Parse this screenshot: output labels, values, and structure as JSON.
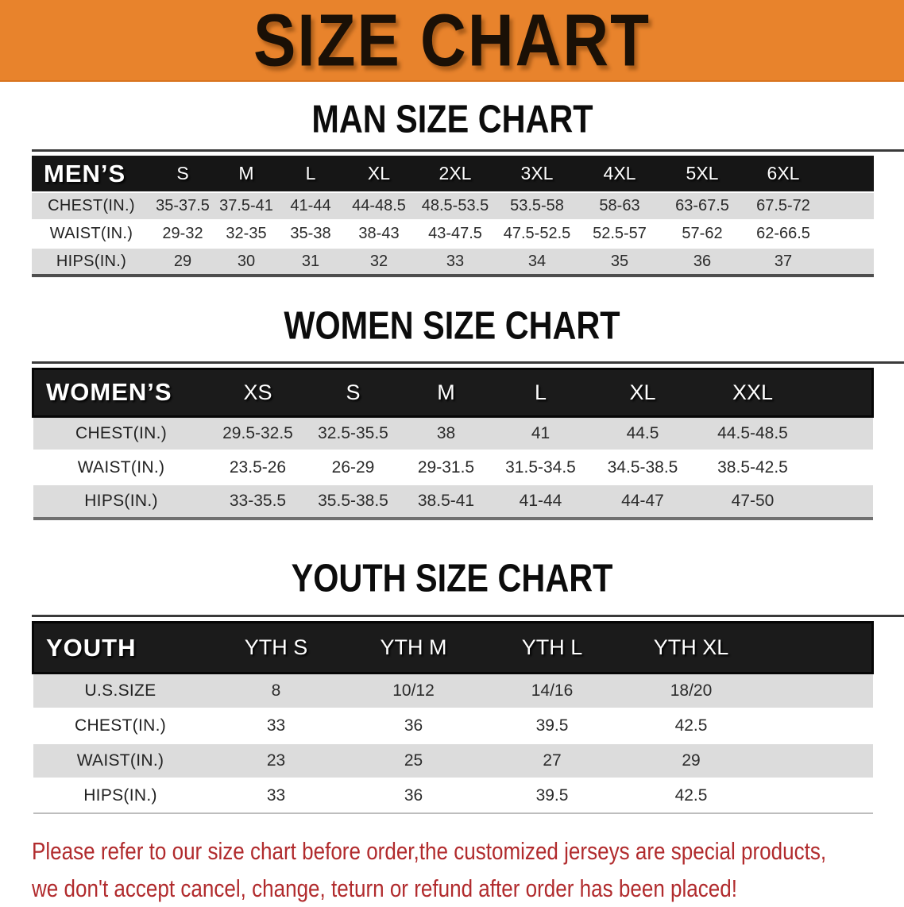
{
  "theme": {
    "banner_bg": "#E8832C",
    "banner_text": "#1A1006",
    "header_bar": "#161616",
    "header_text": "#FFFFFF",
    "row_gray": "#DCDCDC",
    "row_white": "#FFFFFF",
    "disclaimer_red": "#B12B2D"
  },
  "banner": {
    "title": "SIZE CHART"
  },
  "sections": [
    {
      "heading": "MAN SIZE CHART",
      "table": {
        "header": [
          "MEN’S",
          "S",
          "M",
          "L",
          "XL",
          "2XL",
          "3XL",
          "4XL",
          "5XL",
          "6XL"
        ],
        "rows": [
          {
            "label": "CHEST(IN.)",
            "values": [
              "35-37.5",
              "37.5-41",
              "41-44",
              "44-48.5",
              "48.5-53.5",
              "53.5-58",
              "58-63",
              "63-67.5",
              "67.5-72"
            ]
          },
          {
            "label": "WAIST(IN.)",
            "values": [
              "29-32",
              "32-35",
              "35-38",
              "38-43",
              "43-47.5",
              "47.5-52.5",
              "52.5-57",
              "57-62",
              "62-66.5"
            ]
          },
          {
            "label": "HIPS(IN.)",
            "values": [
              "29",
              "30",
              "31",
              "32",
              "33",
              "34",
              "35",
              "36",
              "37"
            ]
          }
        ]
      }
    },
    {
      "heading": "WOMEN SIZE CHART",
      "table": {
        "header": [
          "WOMEN’S",
          "XS",
          "S",
          "M",
          "L",
          "XL",
          "XXL"
        ],
        "rows": [
          {
            "label": "CHEST(IN.)",
            "values": [
              "29.5-32.5",
              "32.5-35.5",
              "38",
              "41",
              "44.5",
              "44.5-48.5"
            ]
          },
          {
            "label": "WAIST(IN.)",
            "values": [
              "23.5-26",
              "26-29",
              "29-31.5",
              "31.5-34.5",
              "34.5-38.5",
              "38.5-42.5"
            ]
          },
          {
            "label": "HIPS(IN.)",
            "values": [
              "33-35.5",
              "35.5-38.5",
              "38.5-41",
              "41-44",
              "44-47",
              "47-50"
            ]
          }
        ]
      }
    },
    {
      "heading": "YOUTH SIZE CHART",
      "table": {
        "header": [
          "YOUTH",
          "YTH S",
          "YTH M",
          "YTH L",
          "YTH XL"
        ],
        "rows": [
          {
            "label": "U.S.SIZE",
            "values": [
              "8",
              "10/12",
              "14/16",
              "18/20"
            ]
          },
          {
            "label": "CHEST(IN.)",
            "values": [
              "33",
              "36",
              "39.5",
              "42.5"
            ]
          },
          {
            "label": "WAIST(IN.)",
            "values": [
              "23",
              "25",
              "27",
              "29"
            ]
          },
          {
            "label": "HIPS(IN.)",
            "values": [
              "33",
              "36",
              "39.5",
              "42.5"
            ]
          }
        ]
      }
    }
  ],
  "disclaimer": {
    "line1": "Please refer to our size chart before order,the customized jerseys are special products,",
    "line2": "we don't accept cancel, change, teturn or refund after order has been placed!"
  }
}
